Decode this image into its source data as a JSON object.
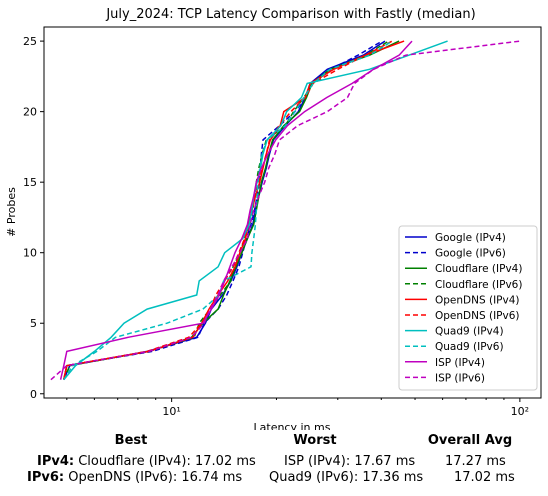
{
  "chart_data": {
    "type": "line",
    "title": "July_2024: TCP Latency Comparison with Fastly (median)",
    "xlabel": "Latency in ms",
    "ylabel": "# Probes",
    "xscale": "log",
    "xlim": [
      4.3,
      115
    ],
    "ylim": [
      -0.3,
      26
    ],
    "xticks": [
      10,
      100
    ],
    "xtick_labels": [
      "10¹",
      "10²"
    ],
    "yticks": [
      0,
      5,
      10,
      15,
      20,
      25
    ],
    "legend_position": "lower-right",
    "grid": false,
    "series": [
      {
        "name": "Google (IPv4)",
        "color": "#0000cc",
        "dash": "solid",
        "points": [
          [
            4.9,
            1
          ],
          [
            5.1,
            2
          ],
          [
            8.5,
            3
          ],
          [
            11.8,
            4
          ],
          [
            12.5,
            5
          ],
          [
            13.0,
            6
          ],
          [
            14.0,
            7
          ],
          [
            14.8,
            8
          ],
          [
            15.4,
            9
          ],
          [
            15.9,
            10
          ],
          [
            16.5,
            11
          ],
          [
            17.1,
            12
          ],
          [
            17.4,
            13
          ],
          [
            17.8,
            14
          ],
          [
            18.2,
            15
          ],
          [
            18.7,
            16
          ],
          [
            19.1,
            17
          ],
          [
            19.6,
            18
          ],
          [
            21.2,
            19
          ],
          [
            23.1,
            20
          ],
          [
            24.2,
            21
          ],
          [
            25.0,
            22
          ],
          [
            28.0,
            23
          ],
          [
            35.5,
            24
          ],
          [
            41.0,
            25
          ]
        ]
      },
      {
        "name": "Google (IPv6)",
        "color": "#0000cc",
        "dash": "dashed",
        "points": [
          [
            4.9,
            1
          ],
          [
            5.0,
            2
          ],
          [
            8.8,
            3
          ],
          [
            11.9,
            4
          ],
          [
            12.4,
            5
          ],
          [
            13.6,
            6
          ],
          [
            14.4,
            7
          ],
          [
            15.0,
            8
          ],
          [
            15.6,
            9
          ],
          [
            16.0,
            10
          ],
          [
            16.4,
            11
          ],
          [
            16.9,
            12
          ],
          [
            17.3,
            13
          ],
          [
            17.6,
            14
          ],
          [
            17.9,
            15
          ],
          [
            18.0,
            16
          ],
          [
            18.1,
            17
          ],
          [
            18.3,
            18
          ],
          [
            20.4,
            19
          ],
          [
            22.6,
            20
          ],
          [
            24.3,
            21
          ],
          [
            25.0,
            22
          ],
          [
            28.6,
            23
          ],
          [
            34.3,
            24
          ],
          [
            40.2,
            25
          ]
        ]
      },
      {
        "name": "Cloudflare (IPv4)",
        "color": "#008000",
        "dash": "solid",
        "points": [
          [
            4.9,
            1
          ],
          [
            5.0,
            2
          ],
          [
            8.6,
            3
          ],
          [
            11.4,
            4
          ],
          [
            12.3,
            5
          ],
          [
            13.6,
            6
          ],
          [
            14.1,
            7
          ],
          [
            14.7,
            8
          ],
          [
            15.3,
            9
          ],
          [
            15.9,
            10
          ],
          [
            16.5,
            11
          ],
          [
            17.2,
            12
          ],
          [
            17.5,
            13
          ],
          [
            17.8,
            14
          ],
          [
            18.1,
            15
          ],
          [
            18.6,
            16
          ],
          [
            19.0,
            17
          ],
          [
            19.5,
            18
          ],
          [
            21.0,
            19
          ],
          [
            23.3,
            20
          ],
          [
            24.4,
            21
          ],
          [
            25.3,
            22
          ],
          [
            28.5,
            23
          ],
          [
            37.0,
            24
          ],
          [
            45.0,
            25
          ]
        ]
      },
      {
        "name": "Cloudflare (IPv6)",
        "color": "#008000",
        "dash": "dashed",
        "points": [
          [
            4.9,
            1
          ],
          [
            5.1,
            2
          ],
          [
            8.6,
            3
          ],
          [
            11.6,
            4
          ],
          [
            12.0,
            5
          ],
          [
            12.9,
            6
          ],
          [
            13.8,
            7
          ],
          [
            14.8,
            8
          ],
          [
            15.0,
            9
          ],
          [
            15.7,
            10
          ],
          [
            16.2,
            11
          ],
          [
            16.8,
            12
          ],
          [
            17.1,
            13
          ],
          [
            17.3,
            14
          ],
          [
            17.5,
            15
          ],
          [
            17.8,
            16
          ],
          [
            18.2,
            17
          ],
          [
            18.7,
            18
          ],
          [
            21.2,
            19
          ],
          [
            22.4,
            20
          ],
          [
            24.0,
            21
          ],
          [
            25.4,
            22
          ],
          [
            28.8,
            23
          ],
          [
            36.0,
            24
          ],
          [
            42.0,
            25
          ]
        ]
      },
      {
        "name": "OpenDNS (IPv4)",
        "color": "#ff0000",
        "dash": "solid",
        "points": [
          [
            4.9,
            1
          ],
          [
            5.0,
            2
          ],
          [
            8.6,
            3
          ],
          [
            11.5,
            4
          ],
          [
            12.2,
            5
          ],
          [
            12.8,
            6
          ],
          [
            13.6,
            7
          ],
          [
            14.5,
            8
          ],
          [
            15.2,
            9
          ],
          [
            15.7,
            10
          ],
          [
            16.3,
            11
          ],
          [
            16.6,
            12
          ],
          [
            17.0,
            13
          ],
          [
            17.4,
            14
          ],
          [
            17.9,
            15
          ],
          [
            18.3,
            16
          ],
          [
            18.7,
            17
          ],
          [
            19.2,
            18
          ],
          [
            20.5,
            19
          ],
          [
            21.0,
            20
          ],
          [
            24.2,
            21
          ],
          [
            25.0,
            22
          ],
          [
            29.2,
            23
          ],
          [
            36.0,
            24
          ],
          [
            46.5,
            25
          ]
        ]
      },
      {
        "name": "OpenDNS (IPv6)",
        "color": "#ff0000",
        "dash": "dashed",
        "points": [
          [
            4.9,
            1
          ],
          [
            5.0,
            2
          ],
          [
            8.5,
            3
          ],
          [
            11.2,
            4
          ],
          [
            12.2,
            5
          ],
          [
            12.9,
            6
          ],
          [
            13.4,
            7
          ],
          [
            14.2,
            8
          ],
          [
            15.0,
            9
          ],
          [
            15.6,
            10
          ],
          [
            16.2,
            11
          ],
          [
            16.6,
            12
          ],
          [
            16.9,
            13
          ],
          [
            17.3,
            14
          ],
          [
            17.8,
            15
          ],
          [
            18.2,
            16
          ],
          [
            18.7,
            17
          ],
          [
            19.1,
            18
          ],
          [
            20.4,
            19
          ],
          [
            22.0,
            20
          ],
          [
            24.2,
            21
          ],
          [
            25.5,
            22
          ],
          [
            30.0,
            23
          ],
          [
            36.0,
            24
          ],
          [
            43.0,
            25
          ]
        ]
      },
      {
        "name": "Quad9 (IPv4)",
        "color": "#00bfbf",
        "dash": "solid",
        "points": [
          [
            4.9,
            1
          ],
          [
            5.3,
            2
          ],
          [
            6.0,
            3
          ],
          [
            6.7,
            4
          ],
          [
            7.3,
            5
          ],
          [
            8.5,
            6
          ],
          [
            11.8,
            7
          ],
          [
            12.0,
            8
          ],
          [
            13.6,
            9
          ],
          [
            14.2,
            10
          ],
          [
            16.0,
            11
          ],
          [
            16.7,
            12
          ],
          [
            17.0,
            13
          ],
          [
            17.2,
            14
          ],
          [
            17.6,
            15
          ],
          [
            18.0,
            16
          ],
          [
            18.3,
            17
          ],
          [
            18.8,
            18
          ],
          [
            20.6,
            19
          ],
          [
            21.4,
            20
          ],
          [
            23.6,
            21
          ],
          [
            24.5,
            22
          ],
          [
            37.0,
            23
          ],
          [
            48.0,
            24
          ],
          [
            62.0,
            25
          ]
        ]
      },
      {
        "name": "Quad9 (IPv6)",
        "color": "#00bfbf",
        "dash": "dashed",
        "points": [
          [
            4.9,
            1
          ],
          [
            5.2,
            2
          ],
          [
            6.1,
            3
          ],
          [
            6.9,
            4
          ],
          [
            9.7,
            5
          ],
          [
            12.3,
            6
          ],
          [
            13.7,
            7
          ],
          [
            14.1,
            8
          ],
          [
            16.9,
            9
          ],
          [
            17.0,
            10
          ],
          [
            17.2,
            11
          ],
          [
            17.4,
            12
          ],
          [
            17.5,
            13
          ],
          [
            17.6,
            14
          ],
          [
            17.7,
            15
          ],
          [
            17.9,
            16
          ],
          [
            18.2,
            17
          ],
          [
            18.8,
            18
          ],
          [
            21.2,
            19
          ],
          [
            22.6,
            20
          ],
          [
            24.0,
            21
          ],
          [
            25.5,
            22
          ],
          [
            28.5,
            23
          ],
          [
            37.0,
            24
          ],
          [
            43.0,
            25
          ]
        ]
      },
      {
        "name": "ISP (IPv4)",
        "color": "#bf00bf",
        "dash": "solid",
        "points": [
          [
            4.8,
            1
          ],
          [
            4.9,
            2
          ],
          [
            5.0,
            3
          ],
          [
            7.5,
            4
          ],
          [
            12.3,
            5
          ],
          [
            13.0,
            6
          ],
          [
            13.7,
            7
          ],
          [
            14.2,
            8
          ],
          [
            14.7,
            9
          ],
          [
            15.2,
            10
          ],
          [
            15.9,
            11
          ],
          [
            16.5,
            12
          ],
          [
            16.8,
            13
          ],
          [
            17.2,
            14
          ],
          [
            17.5,
            15
          ],
          [
            18.1,
            16
          ],
          [
            18.9,
            17
          ],
          [
            19.9,
            18
          ],
          [
            21.5,
            19
          ],
          [
            24.1,
            20
          ],
          [
            27.9,
            21
          ],
          [
            33.0,
            22
          ],
          [
            38.0,
            23
          ],
          [
            45.0,
            24
          ],
          [
            49.0,
            25
          ]
        ]
      },
      {
        "name": "ISP (IPv6)",
        "color": "#bf00bf",
        "dash": "dashed",
        "points": [
          [
            4.5,
            1
          ],
          [
            5.0,
            2
          ],
          [
            8.6,
            3
          ],
          [
            11.4,
            4
          ],
          [
            12.4,
            5
          ],
          [
            12.9,
            6
          ],
          [
            13.6,
            7
          ],
          [
            14.1,
            8
          ],
          [
            14.9,
            9
          ],
          [
            15.7,
            10
          ],
          [
            16.5,
            11
          ],
          [
            16.8,
            12
          ],
          [
            17.2,
            13
          ],
          [
            17.8,
            14
          ],
          [
            18.5,
            15
          ],
          [
            19.0,
            16
          ],
          [
            19.8,
            17
          ],
          [
            20.4,
            18
          ],
          [
            23.0,
            19
          ],
          [
            28.0,
            20
          ],
          [
            32.0,
            21
          ],
          [
            33.5,
            22
          ],
          [
            38.0,
            23
          ],
          [
            47.0,
            24
          ],
          [
            100.0,
            25
          ]
        ]
      }
    ]
  },
  "summary": {
    "headers": {
      "best": "Best",
      "worst": "Worst",
      "avg": "Overall Avg"
    },
    "rows": [
      {
        "label": "IPv4:",
        "best": "Cloudflare (IPv4): 17.02 ms",
        "worst": "ISP (IPv4): 17.67 ms",
        "avg": "17.27 ms"
      },
      {
        "label": "IPv6:",
        "best": "OpenDNS (IPv6): 16.74 ms",
        "worst": "Quad9 (IPv6): 17.36 ms",
        "avg": "17.02 ms"
      }
    ]
  }
}
